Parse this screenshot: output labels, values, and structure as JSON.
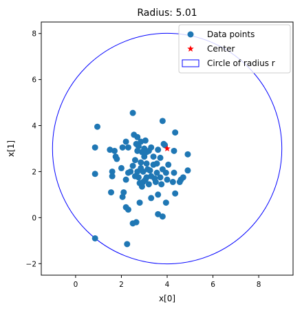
{
  "chart_data": {
    "type": "scatter",
    "title": "Radius: 5.01",
    "xlabel": "x[0]",
    "ylabel": "x[1]",
    "xlim": [
      -1.5,
      9.5
    ],
    "ylim": [
      -2.5,
      8.5
    ],
    "xticks": [
      0,
      2,
      4,
      6,
      8
    ],
    "yticks": [
      -2,
      0,
      2,
      4,
      6,
      8
    ],
    "grid": false,
    "legend_position": "top-right",
    "colors": {
      "points": "#1f77b4",
      "center": "#ff0000",
      "circle": "#0000ff"
    },
    "legend": [
      {
        "label": "Data points",
        "kind": "point"
      },
      {
        "label": "Center",
        "kind": "star"
      },
      {
        "label": "Circle of radius r",
        "kind": "circle"
      }
    ],
    "series": [
      {
        "name": "Data points",
        "points": [
          [
            0.85,
            -0.9
          ],
          [
            2.25,
            -1.15
          ],
          [
            0.85,
            1.9
          ],
          [
            0.85,
            3.05
          ],
          [
            0.95,
            3.95
          ],
          [
            1.5,
            2.95
          ],
          [
            1.7,
            2.9
          ],
          [
            1.75,
            2.65
          ],
          [
            1.8,
            2.55
          ],
          [
            1.6,
            2.0
          ],
          [
            1.6,
            1.8
          ],
          [
            1.55,
            1.1
          ],
          [
            2.0,
            2.15
          ],
          [
            2.05,
            3.05
          ],
          [
            2.2,
            3.3
          ],
          [
            2.3,
            3.05
          ],
          [
            2.5,
            4.55
          ],
          [
            2.55,
            3.6
          ],
          [
            2.7,
            3.5
          ],
          [
            2.65,
            3.2
          ],
          [
            2.7,
            2.9
          ],
          [
            2.85,
            3.3
          ],
          [
            2.75,
            3.1
          ],
          [
            2.9,
            2.85
          ],
          [
            3.05,
            3.35
          ],
          [
            3.0,
            3.0
          ],
          [
            3.1,
            2.85
          ],
          [
            3.2,
            2.9
          ],
          [
            3.3,
            3.05
          ],
          [
            3.4,
            2.65
          ],
          [
            3.4,
            2.3
          ],
          [
            3.1,
            2.35
          ],
          [
            3.0,
            2.65
          ],
          [
            2.95,
            2.0
          ],
          [
            2.85,
            2.4
          ],
          [
            2.7,
            2.0
          ],
          [
            2.6,
            1.8
          ],
          [
            2.5,
            2.25
          ],
          [
            2.4,
            2.0
          ],
          [
            2.3,
            1.95
          ],
          [
            2.2,
            1.65
          ],
          [
            2.1,
            1.1
          ],
          [
            2.05,
            0.9
          ],
          [
            2.2,
            0.45
          ],
          [
            2.3,
            0.35
          ],
          [
            2.5,
            -0.25
          ],
          [
            2.65,
            -0.2
          ],
          [
            2.8,
            0.65
          ],
          [
            2.9,
            1.35
          ],
          [
            2.95,
            1.55
          ],
          [
            3.1,
            1.75
          ],
          [
            3.3,
            1.8
          ],
          [
            3.3,
            0.85
          ],
          [
            3.6,
            1.0
          ],
          [
            3.75,
            1.45
          ],
          [
            3.6,
            0.15
          ],
          [
            3.8,
            0.05
          ],
          [
            3.95,
            0.65
          ],
          [
            4.35,
            1.05
          ],
          [
            4.25,
            1.55
          ],
          [
            4.3,
            1.95
          ],
          [
            4.05,
            2.3
          ],
          [
            3.8,
            2.1
          ],
          [
            3.95,
            1.95
          ],
          [
            3.7,
            1.75
          ],
          [
            3.5,
            1.55
          ],
          [
            3.2,
            1.45
          ],
          [
            3.25,
            2.05
          ],
          [
            3.55,
            2.35
          ],
          [
            3.7,
            2.6
          ],
          [
            3.6,
            2.95
          ],
          [
            3.85,
            3.2
          ],
          [
            3.9,
            3.15
          ],
          [
            4.3,
            2.9
          ],
          [
            4.35,
            3.7
          ],
          [
            3.8,
            4.2
          ],
          [
            4.6,
            1.65
          ],
          [
            4.55,
            1.55
          ],
          [
            4.7,
            1.75
          ],
          [
            4.9,
            2.05
          ],
          [
            4.9,
            2.75
          ],
          [
            3.55,
            1.95
          ],
          [
            3.15,
            2.1
          ],
          [
            2.75,
            1.75
          ],
          [
            2.6,
            2.5
          ],
          [
            2.85,
            2.15
          ],
          [
            3.05,
            1.65
          ],
          [
            3.45,
            1.7
          ],
          [
            4.0,
            1.65
          ],
          [
            2.8,
            1.5
          ]
        ]
      },
      {
        "name": "Center",
        "points": [
          [
            4.0,
            3.0
          ]
        ]
      }
    ],
    "circle": {
      "center": [
        4.0,
        3.0
      ],
      "radius": 5.01
    }
  }
}
